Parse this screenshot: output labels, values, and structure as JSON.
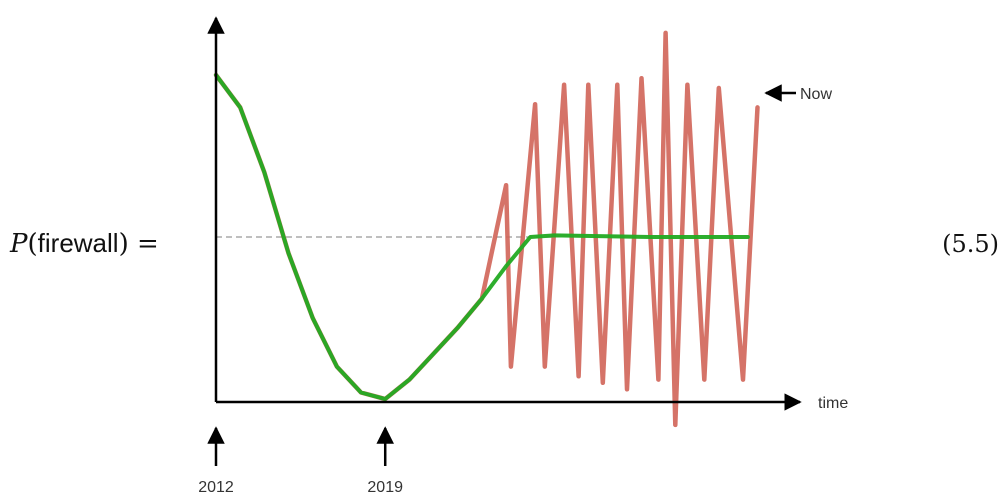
{
  "equation": {
    "lhs_var": "P",
    "lhs_arg": "firewall",
    "lhs_eq": "=",
    "number": "(5.5)"
  },
  "chart_data": {
    "type": "line",
    "title": "",
    "xlabel": "time",
    "ylabel": "",
    "xlim": [
      2012,
      2035
    ],
    "ylim": [
      0,
      1
    ],
    "grid": false,
    "reference_line": {
      "y": 0.5,
      "style": "dashed"
    },
    "x_markers": [
      {
        "x": 2012,
        "label": "2012"
      },
      {
        "x": 2019,
        "label": "2019"
      }
    ],
    "annotation": {
      "text": "Now",
      "x": 2035,
      "y": 0.95
    },
    "series": [
      {
        "color": "#22aa22",
        "points": [
          [
            2012,
            1.0
          ],
          [
            2013,
            0.9
          ],
          [
            2014,
            0.7
          ],
          [
            2015,
            0.45
          ],
          [
            2016,
            0.25
          ],
          [
            2017,
            0.1
          ],
          [
            2018,
            0.02
          ],
          [
            2019,
            0.0
          ],
          [
            2020,
            0.06
          ],
          [
            2021,
            0.14
          ],
          [
            2022,
            0.22
          ],
          [
            2023,
            0.31
          ],
          [
            2024,
            0.41
          ],
          [
            2025,
            0.5
          ],
          [
            2026,
            0.505
          ],
          [
            2030,
            0.5
          ],
          [
            2034,
            0.5
          ]
        ]
      },
      {
        "color": "#d06458",
        "points": [
          [
            2012,
            1.0
          ],
          [
            2013,
            0.9
          ],
          [
            2014,
            0.7
          ],
          [
            2015,
            0.45
          ],
          [
            2016,
            0.25
          ],
          [
            2017,
            0.1
          ],
          [
            2018,
            0.02
          ],
          [
            2019,
            0.0
          ],
          [
            2020,
            0.06
          ],
          [
            2021,
            0.14
          ],
          [
            2022,
            0.22
          ],
          [
            2023,
            0.31
          ],
          [
            2024,
            0.66
          ],
          [
            2024.2,
            0.1
          ],
          [
            2025.2,
            0.91
          ],
          [
            2025.6,
            0.1
          ],
          [
            2026.4,
            0.97
          ],
          [
            2027,
            0.07
          ],
          [
            2027.4,
            0.97
          ],
          [
            2028,
            0.05
          ],
          [
            2028.6,
            0.97
          ],
          [
            2029,
            0.03
          ],
          [
            2029.6,
            0.99
          ],
          [
            2030.3,
            0.06
          ],
          [
            2030.6,
            1.13
          ],
          [
            2031,
            -0.08
          ],
          [
            2031.5,
            0.97
          ],
          [
            2032.2,
            0.06
          ],
          [
            2032.8,
            0.96
          ],
          [
            2033.8,
            0.06
          ],
          [
            2034.4,
            0.9
          ]
        ]
      }
    ]
  }
}
